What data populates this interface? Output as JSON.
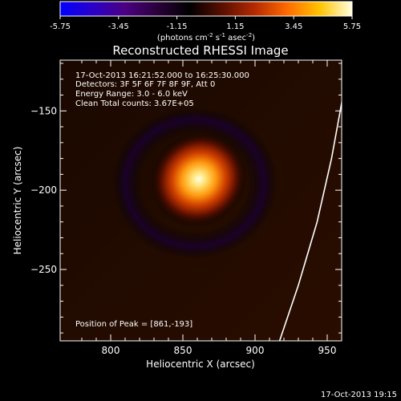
{
  "colorbar": {
    "ticks": [
      "-5.75",
      "-3.45",
      "-1.15",
      "1.15",
      "3.45",
      "5.75"
    ],
    "unit_pre": "(photons cm",
    "unit_exp1": "-2",
    "unit_mid": " s",
    "unit_exp2": "-1",
    "unit_mid2": " asec",
    "unit_exp3": "-2",
    "unit_post": ")",
    "colors": [
      "#0000ff",
      "#2a00c8",
      "#4b0082",
      "#2a003a",
      "#000000",
      "#5a0f00",
      "#b52a00",
      "#ff6a00",
      "#ffc400",
      "#ffffe0"
    ]
  },
  "plot": {
    "title": "Reconstructed RHESSI Image",
    "info": [
      "17-Oct-2013 16:21:52.000 to 16:25:30.000",
      "Detectors: 3F 5F 6F 7F 8F 9F, Att 0",
      "Energy Range: 3.0 - 6.0 keV",
      "Clean    Total counts: 3.67E+05"
    ],
    "peak_text": "Position of Peak = [861,-193]",
    "xlabel": "Heliocentric X (arcsec)",
    "ylabel": "Heliocentric Y (arcsec)"
  },
  "footer": {
    "timestamp": "17-Oct-2013 19:15"
  },
  "chart_data": {
    "type": "heatmap",
    "title": "Reconstructed RHESSI Image",
    "xlabel": "Heliocentric X (arcsec)",
    "ylabel": "Heliocentric Y (arcsec)",
    "xlim": [
      765,
      960
    ],
    "ylim": [
      -295,
      -118
    ],
    "xticks": [
      800,
      850,
      900,
      950
    ],
    "yticks": [
      -150,
      -200,
      -250
    ],
    "peak": {
      "x": 861,
      "y": -193
    },
    "limb_curve": [
      {
        "x": 917,
        "y": -295
      },
      {
        "x": 930,
        "y": -260
      },
      {
        "x": 943,
        "y": -220
      },
      {
        "x": 953,
        "y": -180
      },
      {
        "x": 961,
        "y": -140
      }
    ],
    "colorbar_range": [
      -5.75,
      5.75
    ],
    "colors": {
      "ticks": "#ffffff",
      "limb": "#ffffff",
      "background": "#000000"
    }
  }
}
